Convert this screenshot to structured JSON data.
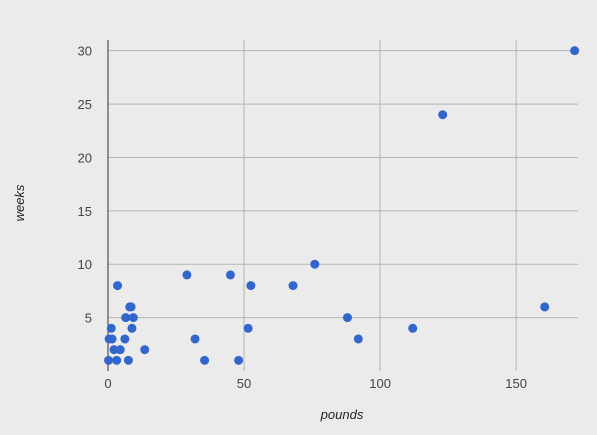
{
  "chart_data": {
    "type": "scatter",
    "xlabel": "pounds",
    "ylabel": "weeks",
    "xlim": [
      0,
      172
    ],
    "ylim": [
      0,
      31
    ],
    "x_ticks": [
      0,
      50,
      100,
      150
    ],
    "y_ticks": [
      5,
      10,
      15,
      20,
      25,
      30
    ],
    "grid": true,
    "marker_color": "#3366cc",
    "points": [
      {
        "x": 0.2,
        "y": 1
      },
      {
        "x": 0.4,
        "y": 3
      },
      {
        "x": 1.2,
        "y": 4
      },
      {
        "x": 1.5,
        "y": 3
      },
      {
        "x": 2.2,
        "y": 2
      },
      {
        "x": 3.2,
        "y": 1
      },
      {
        "x": 3.5,
        "y": 8
      },
      {
        "x": 4.5,
        "y": 2
      },
      {
        "x": 6.2,
        "y": 3
      },
      {
        "x": 6.5,
        "y": 5
      },
      {
        "x": 7.5,
        "y": 1
      },
      {
        "x": 8.0,
        "y": 6
      },
      {
        "x": 8.5,
        "y": 6
      },
      {
        "x": 8.8,
        "y": 4
      },
      {
        "x": 9.3,
        "y": 5
      },
      {
        "x": 13.5,
        "y": 2
      },
      {
        "x": 29,
        "y": 9
      },
      {
        "x": 32,
        "y": 3
      },
      {
        "x": 35.5,
        "y": 1
      },
      {
        "x": 45,
        "y": 9
      },
      {
        "x": 48,
        "y": 1
      },
      {
        "x": 51.5,
        "y": 4
      },
      {
        "x": 52.5,
        "y": 8
      },
      {
        "x": 68,
        "y": 8
      },
      {
        "x": 76,
        "y": 10
      },
      {
        "x": 88,
        "y": 5
      },
      {
        "x": 92,
        "y": 3
      },
      {
        "x": 112,
        "y": 4
      },
      {
        "x": 123,
        "y": 24
      },
      {
        "x": 160.5,
        "y": 6
      },
      {
        "x": 171.5,
        "y": 30
      }
    ]
  }
}
